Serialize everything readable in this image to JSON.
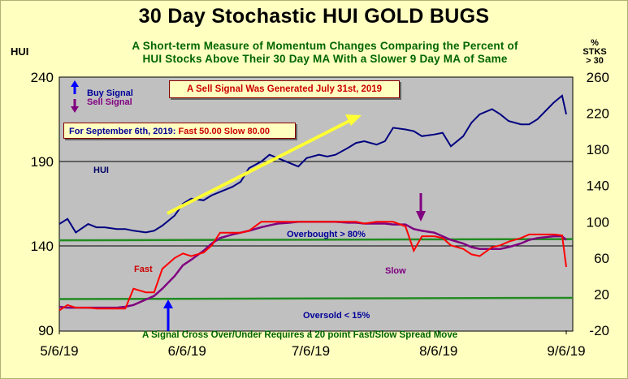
{
  "header": {
    "title": "30 Day Stochastic HUI GOLD BUGS",
    "subtitle_line1": "A Short-term Measure of Momentum Changes Comparing the Percent of",
    "subtitle_line2": "HUI Stocks Above Their 30 Day MA With a Slower 9 Day MA of Same"
  },
  "axes": {
    "left_title": "HUI",
    "right_title_line1": "%",
    "right_title_line2": "STKS",
    "right_title_line3": "> 30"
  },
  "annotations": {
    "buy_signal": "Buy Signal",
    "sell_signal": "Sell Signal",
    "sell_generated": "A Sell Signal Was Generated July 31st, 2019",
    "sept_prefix": "For September 6th, 2019:",
    "sept_values": "Fast 50.00 Slow 80.00",
    "hui_label": "HUI",
    "overbought": "Overbought > 80%",
    "oversold": "Oversold < 15%",
    "fast_label": "Fast",
    "slow_label": "Slow",
    "footnote": "A Signal Cross Over/Under Requires a 20 point Fast/Slow Spread Move"
  },
  "colors": {
    "hui": "#000080",
    "fast": "#ff0000",
    "slow": "#800080",
    "threshold": "#228b22",
    "trend_arrow": "#ffff33",
    "buy_arrow": "#0000ff",
    "sell_arrow": "#800080",
    "plot_bg": "#c0c0c0"
  },
  "chart_data": {
    "type": "line",
    "x_tick_labels": [
      "5/6/19",
      "6/6/19",
      "7/6/19",
      "8/6/19",
      "9/6/19"
    ],
    "x_range": [
      "2019-05-06",
      "2019-09-06"
    ],
    "left_axis": {
      "ticks": [
        90,
        140,
        190,
        240
      ],
      "ylim": [
        90,
        240
      ]
    },
    "right_axis": {
      "ticks": [
        -20,
        20,
        60,
        100,
        140,
        180,
        220,
        260
      ],
      "ylim": [
        -20,
        260
      ]
    },
    "thresholds": {
      "overbought": 80,
      "oversold": 15
    },
    "grid": "horizontal at 140 and 190 (left axis)",
    "series": [
      {
        "name": "HUI",
        "axis": "left",
        "x": [
          "2019-05-06",
          "2019-05-08",
          "2019-05-10",
          "2019-05-13",
          "2019-05-15",
          "2019-05-17",
          "2019-05-20",
          "2019-05-22",
          "2019-05-24",
          "2019-05-27",
          "2019-05-29",
          "2019-05-31",
          "2019-06-03",
          "2019-06-05",
          "2019-06-07",
          "2019-06-10",
          "2019-06-12",
          "2019-06-14",
          "2019-06-17",
          "2019-06-19",
          "2019-06-21",
          "2019-06-24",
          "2019-06-26",
          "2019-06-28",
          "2019-07-01",
          "2019-07-03",
          "2019-07-05",
          "2019-07-08",
          "2019-07-10",
          "2019-07-12",
          "2019-07-15",
          "2019-07-17",
          "2019-07-19",
          "2019-07-22",
          "2019-07-24",
          "2019-07-26",
          "2019-07-29",
          "2019-07-31",
          "2019-08-02",
          "2019-08-05",
          "2019-08-07",
          "2019-08-09",
          "2019-08-12",
          "2019-08-14",
          "2019-08-16",
          "2019-08-19",
          "2019-08-21",
          "2019-08-23",
          "2019-08-26",
          "2019-08-28",
          "2019-08-30",
          "2019-09-03",
          "2019-09-05",
          "2019-09-06"
        ],
        "values": [
          153,
          156,
          148,
          153,
          151,
          151,
          150,
          150,
          149,
          148,
          149,
          152,
          158,
          165,
          168,
          167,
          170,
          172,
          175,
          178,
          186,
          190,
          194,
          192,
          189,
          187,
          192,
          194,
          193,
          194,
          198,
          201,
          202,
          200,
          202,
          210,
          209,
          208,
          205,
          206,
          207,
          199,
          205,
          213,
          218,
          221,
          218,
          214,
          212,
          212,
          215,
          225,
          229,
          218
        ]
      },
      {
        "name": "Fast",
        "axis": "right",
        "x": [
          "2019-05-06",
          "2019-05-08",
          "2019-05-10",
          "2019-05-13",
          "2019-05-15",
          "2019-05-17",
          "2019-05-20",
          "2019-05-22",
          "2019-05-24",
          "2019-05-27",
          "2019-05-29",
          "2019-05-31",
          "2019-06-03",
          "2019-06-05",
          "2019-06-07",
          "2019-06-10",
          "2019-06-12",
          "2019-06-14",
          "2019-06-17",
          "2019-06-19",
          "2019-06-21",
          "2019-06-24",
          "2019-06-26",
          "2019-06-28",
          "2019-07-01",
          "2019-07-03",
          "2019-07-05",
          "2019-07-08",
          "2019-07-10",
          "2019-07-12",
          "2019-07-15",
          "2019-07-17",
          "2019-07-19",
          "2019-07-22",
          "2019-07-24",
          "2019-07-26",
          "2019-07-29",
          "2019-07-31",
          "2019-08-02",
          "2019-08-05",
          "2019-08-07",
          "2019-08-09",
          "2019-08-12",
          "2019-08-14",
          "2019-08-16",
          "2019-08-19",
          "2019-08-21",
          "2019-08-23",
          "2019-08-26",
          "2019-08-28",
          "2019-08-30",
          "2019-09-03",
          "2019-09-05",
          "2019-09-06"
        ],
        "values": [
          2,
          8,
          5,
          5,
          4,
          4,
          4,
          4,
          26,
          22,
          22,
          48,
          60,
          65,
          62,
          66,
          74,
          88,
          88,
          88,
          90,
          100,
          100,
          100,
          100,
          100,
          100,
          100,
          100,
          100,
          100,
          100,
          98,
          100,
          100,
          100,
          95,
          68,
          84,
          84,
          82,
          74,
          70,
          64,
          62,
          72,
          74,
          78,
          82,
          86,
          86,
          86,
          85,
          50
        ]
      },
      {
        "name": "Slow",
        "axis": "right",
        "x": [
          "2019-05-06",
          "2019-05-08",
          "2019-05-10",
          "2019-05-13",
          "2019-05-15",
          "2019-05-17",
          "2019-05-20",
          "2019-05-22",
          "2019-05-24",
          "2019-05-27",
          "2019-05-29",
          "2019-05-31",
          "2019-06-03",
          "2019-06-05",
          "2019-06-07",
          "2019-06-10",
          "2019-06-12",
          "2019-06-14",
          "2019-06-17",
          "2019-06-19",
          "2019-06-21",
          "2019-06-24",
          "2019-06-26",
          "2019-06-28",
          "2019-07-01",
          "2019-07-03",
          "2019-07-05",
          "2019-07-08",
          "2019-07-10",
          "2019-07-12",
          "2019-07-15",
          "2019-07-17",
          "2019-07-19",
          "2019-07-22",
          "2019-07-24",
          "2019-07-26",
          "2019-07-29",
          "2019-07-31",
          "2019-08-02",
          "2019-08-05",
          "2019-08-07",
          "2019-08-09",
          "2019-08-12",
          "2019-08-14",
          "2019-08-16",
          "2019-08-19",
          "2019-08-21",
          "2019-08-23",
          "2019-08-26",
          "2019-08-28",
          "2019-08-30",
          "2019-09-03",
          "2019-09-05",
          "2019-09-06"
        ],
        "values": [
          6,
          5,
          5,
          5,
          5,
          5,
          5,
          6,
          8,
          14,
          18,
          26,
          40,
          52,
          58,
          68,
          76,
          82,
          86,
          88,
          90,
          94,
          96,
          98,
          99,
          100,
          100,
          100,
          100,
          100,
          99,
          99,
          98,
          98,
          98,
          97,
          97,
          92,
          90,
          88,
          84,
          80,
          76,
          72,
          70,
          70,
          70,
          72,
          76,
          80,
          82,
          84,
          84,
          80
        ]
      }
    ]
  }
}
